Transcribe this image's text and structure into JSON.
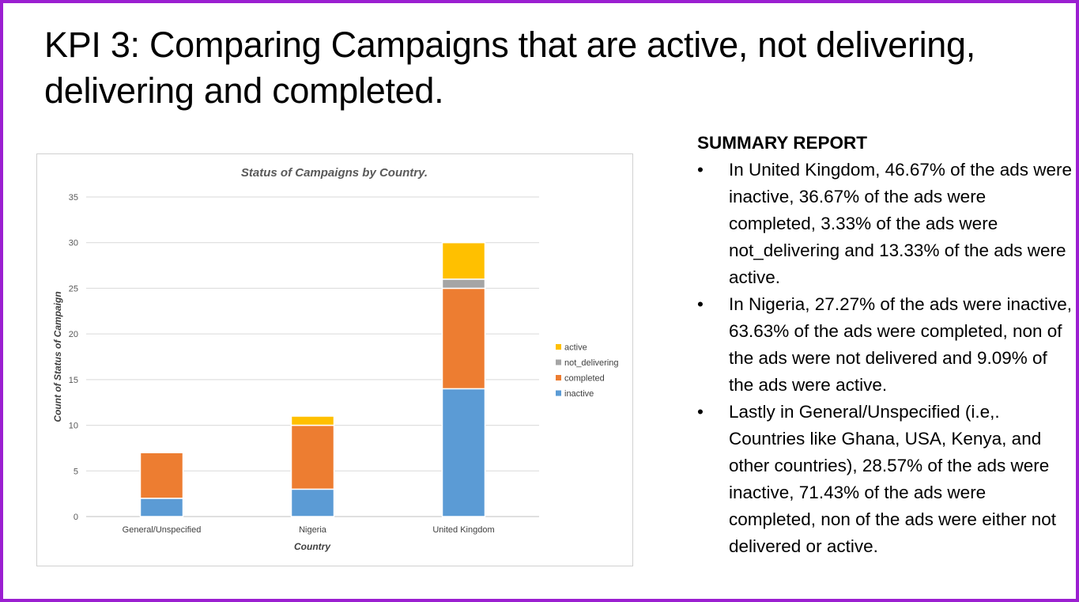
{
  "slide": {
    "title": "KPI 3: Comparing Campaigns that are active, not delivering, delivering and completed."
  },
  "chart_data": {
    "type": "bar",
    "stacked": true,
    "title": "Status of Campaigns by Country.",
    "xlabel": "Country",
    "ylabel": "Count of Status of Campaign",
    "categories": [
      "General/Unspecified",
      "Nigeria",
      "United Kingdom"
    ],
    "ylim": [
      0,
      35
    ],
    "yticks": [
      0,
      5,
      10,
      15,
      20,
      25,
      30,
      35
    ],
    "grid": true,
    "legend_position": "right",
    "series": [
      {
        "name": "inactive",
        "color": "#5b9bd5",
        "values": [
          2,
          3,
          14
        ]
      },
      {
        "name": "completed",
        "color": "#ed7d31",
        "values": [
          5,
          7,
          11
        ]
      },
      {
        "name": "not_delivering",
        "color": "#a5a5a5",
        "values": [
          0,
          0,
          1
        ]
      },
      {
        "name": "active",
        "color": "#ffc000",
        "values": [
          0,
          1,
          4
        ]
      }
    ],
    "legend_order": [
      "active",
      "not_delivering",
      "completed",
      "inactive"
    ]
  },
  "summary": {
    "heading": "SUMMARY REPORT",
    "bullet_glyph": "•",
    "items": [
      "In United Kingdom, 46.67% of the ads were inactive, 36.67% of the ads were completed, 3.33% of the ads were not_delivering  and 13.33% of the ads were active.",
      "In Nigeria, 27.27% of the ads were inactive, 63.63% of the ads were completed, non of the ads were not delivered and 9.09% of the ads were active.",
      "Lastly in General/Unspecified (i.e,. Countries like Ghana, USA, Kenya, and other countries), 28.57% of the ads were inactive, 71.43% of the ads were completed, non of the ads were either not delivered or active."
    ]
  }
}
